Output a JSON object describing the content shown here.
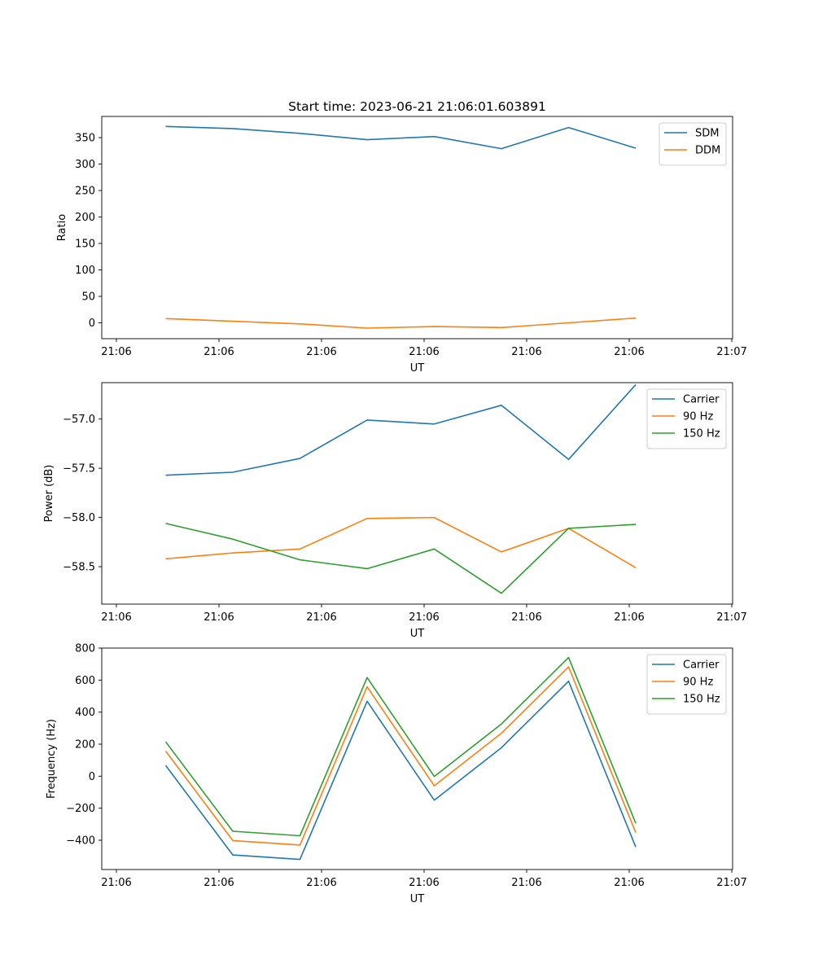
{
  "chart_data": [
    {
      "type": "line",
      "title": "Start time: 2023-06-21 21:06:01.603891",
      "xlabel": "UT",
      "ylabel": "Ratio",
      "xticks": [
        "21:06",
        "21:06",
        "21:06",
        "21:06",
        "21:06",
        "21:06",
        "21:07"
      ],
      "yticks": [
        "0",
        "50",
        "100",
        "150",
        "200",
        "250",
        "300",
        "350"
      ],
      "ylim": [
        -30,
        390
      ],
      "legend_position": "top-right",
      "grid": false,
      "series": [
        {
          "name": "SDM",
          "color": "#1f77b4",
          "values": [
            371,
            367,
            358,
            346,
            352,
            329,
            369,
            330
          ]
        },
        {
          "name": "DDM",
          "color": "#ff7f0e",
          "values": [
            8,
            3,
            -2,
            -10,
            -7,
            -9,
            0,
            9
          ]
        }
      ]
    },
    {
      "type": "line",
      "title": "",
      "xlabel": "UT",
      "ylabel": "Power (dB)",
      "xticks": [
        "21:06",
        "21:06",
        "21:06",
        "21:06",
        "21:06",
        "21:06",
        "21:07"
      ],
      "yticks": [
        "−58.5",
        "−58.0",
        "−57.5",
        "−57.0"
      ],
      "ylim": [
        -58.88,
        -56.63
      ],
      "legend_position": "top-right",
      "grid": false,
      "series": [
        {
          "name": "Carrier",
          "color": "#1f77b4",
          "values": [
            -57.57,
            -57.54,
            -57.4,
            -57.01,
            -57.05,
            -56.86,
            -57.41,
            -56.65
          ]
        },
        {
          "name": "90 Hz",
          "color": "#ff7f0e",
          "values": [
            -58.42,
            -58.36,
            -58.32,
            -58.01,
            -58.0,
            -58.35,
            -58.11,
            -58.51
          ]
        },
        {
          "name": "150 Hz",
          "color": "#2ca02c",
          "values": [
            -58.06,
            -58.22,
            -58.43,
            -58.52,
            -58.32,
            -58.77,
            -58.11,
            -58.07
          ]
        }
      ]
    },
    {
      "type": "line",
      "title": "",
      "xlabel": "UT",
      "ylabel": "Frequency (Hz)",
      "xticks": [
        "21:06",
        "21:06",
        "21:06",
        "21:06",
        "21:06",
        "21:06",
        "21:07"
      ],
      "yticks": [
        "−400",
        "−200",
        "0",
        "200",
        "400",
        "600",
        "800"
      ],
      "ylim": [
        -583,
        800
      ],
      "legend_position": "top-right",
      "grid": false,
      "series": [
        {
          "name": "Carrier",
          "color": "#1f77b4",
          "values": [
            67,
            -492,
            -520,
            468,
            -150,
            178,
            593,
            -442
          ]
        },
        {
          "name": "90 Hz",
          "color": "#ff7f0e",
          "values": [
            157,
            -402,
            -430,
            558,
            -60,
            268,
            683,
            -352
          ]
        },
        {
          "name": "150 Hz",
          "color": "#2ca02c",
          "values": [
            215,
            -344,
            -372,
            616,
            -2,
            326,
            741,
            -294
          ]
        }
      ]
    }
  ]
}
